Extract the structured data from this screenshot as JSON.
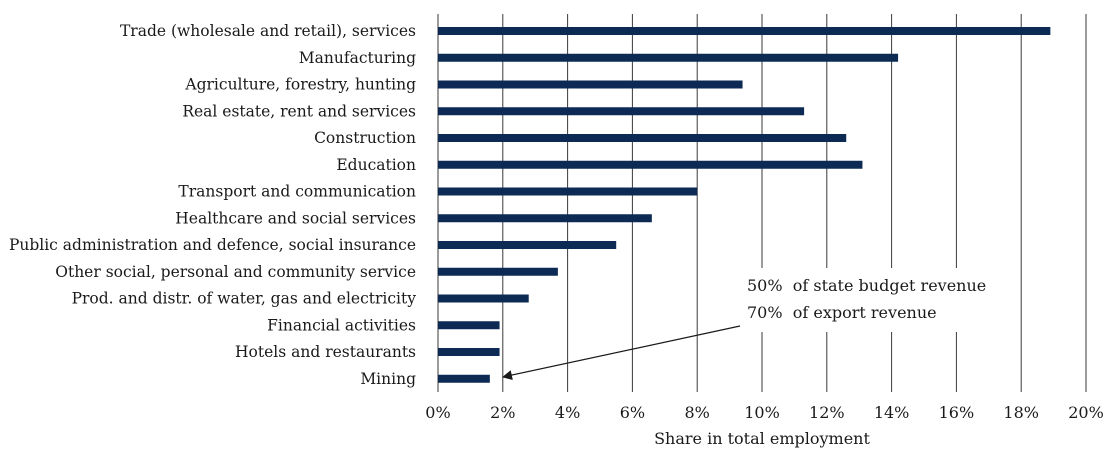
{
  "chart_data": {
    "type": "bar",
    "orientation": "horizontal",
    "categories": [
      "Trade (wholesale and retail), services",
      "Manufacturing",
      "Agriculture, forestry, hunting",
      "Real estate, rent and services",
      "Construction",
      "Education",
      "Transport and communication",
      "Healthcare and social services",
      "Public administration and defence, social insurance",
      "Other social, personal and community service",
      "Prod. and distr. of water, gas and electricity",
      "Financial activities",
      "Hotels and restaurants",
      "Mining"
    ],
    "values": [
      18.9,
      14.2,
      9.4,
      11.3,
      12.6,
      13.1,
      8.0,
      6.6,
      5.5,
      3.7,
      2.8,
      1.9,
      1.9,
      1.6
    ],
    "xlabel": "Share in total employment",
    "xlim": [
      0,
      20
    ],
    "x_ticks": [
      "0%",
      "2%",
      "4%",
      "6%",
      "8%",
      "10%",
      "12%",
      "14%",
      "16%",
      "18%",
      "20%"
    ],
    "grid": "vertical",
    "bar_color": "#0d2a55",
    "annotations": [
      "50%  of state budget revenue",
      "70%  of export revenue"
    ],
    "annotation_target": "Mining"
  }
}
